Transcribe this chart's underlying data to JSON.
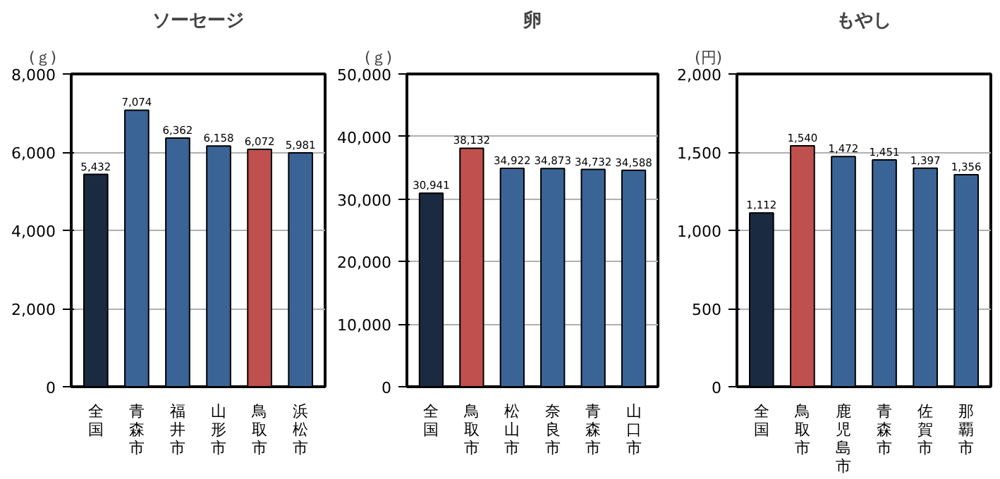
{
  "chart_data": [
    {
      "type": "bar",
      "title": "ソーセージ",
      "ylabel": "(ｇ)",
      "categories": [
        "全国",
        "青森市",
        "福井市",
        "山形市",
        "鳥取市",
        "浜松市"
      ],
      "values": [
        5432,
        7074,
        6362,
        6158,
        6072,
        5981
      ],
      "colors": [
        "#1a2a40",
        "#3a6496",
        "#3a6496",
        "#3a6496",
        "#c0504d",
        "#3a6496"
      ],
      "value_labels": [
        "5,432",
        "7,074",
        "6,362",
        "6,158",
        "6,072",
        "5,981"
      ],
      "ylim": [
        0,
        8000
      ],
      "yticks": [
        0,
        {
          "value": 2000,
          "label": "2,000"
        },
        {
          "value": 4000,
          "label": "4,000"
        },
        {
          "value": 6000,
          "label": "6,000"
        },
        {
          "value": 8000,
          "label": "8,000"
        }
      ],
      "grid": "y"
    },
    {
      "type": "bar",
      "title": "卵",
      "ylabel": "(ｇ)",
      "categories": [
        "全国",
        "鳥取市",
        "松山市",
        "奈良市",
        "青森市",
        "山口市"
      ],
      "values": [
        30941,
        38132,
        34922,
        34873,
        34732,
        34588
      ],
      "colors": [
        "#1a2a40",
        "#c0504d",
        "#3a6496",
        "#3a6496",
        "#3a6496",
        "#3a6496"
      ],
      "value_labels": [
        "30,941",
        "38,132",
        "34,922",
        "34,873",
        "34,732",
        "34,588"
      ],
      "ylim": [
        0,
        50000
      ],
      "yticks": [
        0,
        {
          "value": 10000,
          "label": "10,000"
        },
        {
          "value": 20000,
          "label": "20,000"
        },
        {
          "value": 30000,
          "label": "30,000"
        },
        {
          "value": 40000,
          "label": "40,000"
        },
        {
          "value": 50000,
          "label": "50,000"
        }
      ],
      "grid": "y"
    },
    {
      "type": "bar",
      "title": "もやし",
      "ylabel": "(円)",
      "categories": [
        "全国",
        "鳥取市",
        "鹿児島市",
        "青森市",
        "佐賀市",
        "那覇市"
      ],
      "values": [
        1112,
        1540,
        1472,
        1451,
        1397,
        1356
      ],
      "colors": [
        "#1a2a40",
        "#c0504d",
        "#3a6496",
        "#3a6496",
        "#3a6496",
        "#3a6496"
      ],
      "value_labels": [
        "1,112",
        "1,540",
        "1,472",
        "1,451",
        "1,397",
        "1,356"
      ],
      "ylim": [
        0,
        2000
      ],
      "yticks": [
        0,
        500,
        {
          "value": 1000,
          "label": "1,000"
        },
        {
          "value": 1500,
          "label": "1,500"
        },
        {
          "value": 2000,
          "label": "2,000"
        }
      ],
      "grid": "y"
    }
  ]
}
